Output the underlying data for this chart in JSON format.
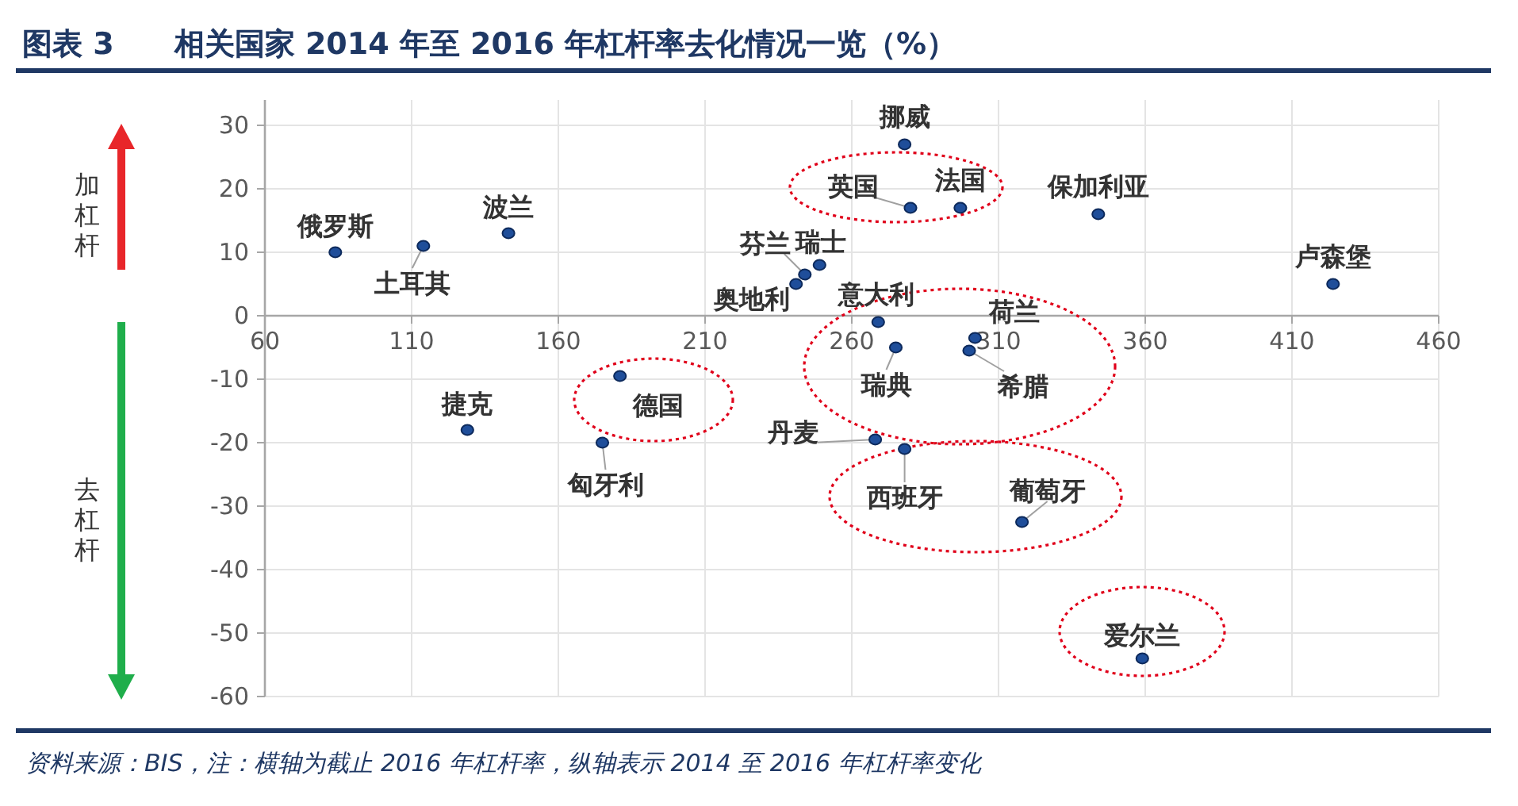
{
  "chart_data": {
    "type": "scatter",
    "title": "图表 3　　相关国家 2014 年至 2016 年杠杆率去化情况一览（%）",
    "x": [
      84,
      114,
      143,
      244,
      249,
      241,
      269,
      278,
      280,
      297,
      344,
      424,
      302,
      275,
      300,
      268,
      278,
      181,
      129,
      175,
      318,
      359
    ],
    "values": [
      10,
      11,
      13,
      6.5,
      8,
      5,
      -1,
      27,
      17,
      17,
      16,
      5,
      -3.5,
      -5,
      -5.5,
      -19.5,
      -21,
      -9.5,
      -18,
      -20,
      -32.5,
      -54
    ],
    "color": "#1f4e9a",
    "marker": "circle",
    "grid": true,
    "xlim": [
      60,
      460
    ],
    "xticks": [
      60,
      110,
      160,
      210,
      260,
      310,
      360,
      410,
      460
    ],
    "ylim": [
      -60,
      34
    ],
    "yticks": [
      -60,
      -50,
      -40,
      -30,
      -20,
      -10,
      0,
      10,
      20,
      30
    ],
    "annotations": [
      {
        "text": "俄罗斯",
        "x": 84,
        "y": 10
      },
      {
        "text": "土耳其",
        "x": 114,
        "y": 11
      },
      {
        "text": "波兰",
        "x": 143,
        "y": 13
      },
      {
        "text": "芬兰",
        "x": 244,
        "y": 6.5
      },
      {
        "text": "瑞士",
        "x": 249,
        "y": 8
      },
      {
        "text": "奥地利",
        "x": 241,
        "y": 5
      },
      {
        "text": "意大利",
        "x": 269,
        "y": -1
      },
      {
        "text": "挪威",
        "x": 278,
        "y": 27
      },
      {
        "text": "英国",
        "x": 280,
        "y": 17
      },
      {
        "text": "法国",
        "x": 297,
        "y": 17
      },
      {
        "text": "保加利亚",
        "x": 344,
        "y": 16
      },
      {
        "text": "卢森堡",
        "x": 424,
        "y": 5
      },
      {
        "text": "荷兰",
        "x": 302,
        "y": -3.5
      },
      {
        "text": "瑞典",
        "x": 275,
        "y": -5
      },
      {
        "text": "希腊",
        "x": 300,
        "y": -5.5
      },
      {
        "text": "丹麦",
        "x": 268,
        "y": -19.5
      },
      {
        "text": "西班牙",
        "x": 278,
        "y": -21
      },
      {
        "text": "德国",
        "x": 181,
        "y": -9.5
      },
      {
        "text": "捷克",
        "x": 129,
        "y": -18
      },
      {
        "text": "匈牙利",
        "x": 175,
        "y": -20
      },
      {
        "text": "葡萄牙",
        "x": 318,
        "y": -32.5
      },
      {
        "text": "爱尔兰",
        "x": 359,
        "y": -54
      },
      "加杠杆",
      "去杠杆",
      "资料来源：BIS，注：横轴为截止 2016 年杠杆率，纵轴表示 2014 至 2016 年杠杆率变化"
    ]
  }
}
